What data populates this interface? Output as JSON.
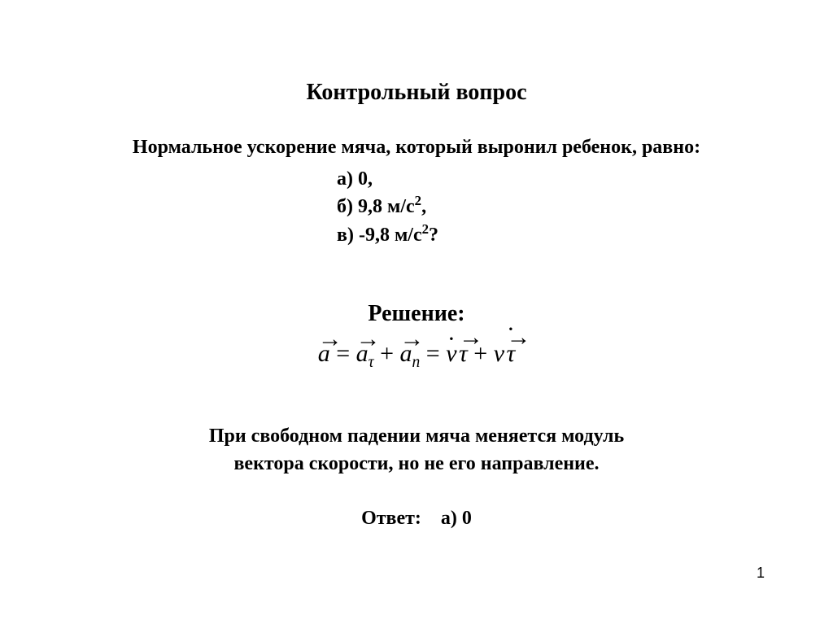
{
  "title": {
    "text": "Контрольный вопрос",
    "fontsize": 28
  },
  "question": {
    "prompt": "Нормальное ускорение мяча, который выронил ребенок, равно:",
    "fontsize": 24,
    "options": {
      "a": {
        "label": "а) 0,"
      },
      "b": {
        "prefix": "б) 9,8 м/с",
        "exp": "2",
        "suffix": ","
      },
      "c": {
        "prefix": "в) -9,8 м/с",
        "exp": "2",
        "suffix": "?"
      }
    }
  },
  "solution": {
    "label": "Решение:",
    "label_fontsize": 28,
    "equation_fontsize": 30,
    "eq": {
      "a": "a",
      "eq1": " = ",
      "atau": "a",
      "tau_sub": "τ",
      "plus": " + ",
      "an": "a",
      "n_sub": "n",
      "eq2": " = ",
      "vdot": "v",
      "tau1": "τ",
      "plus2": " + ",
      "v2": "v",
      "tau2": "τ",
      "arrow": "→",
      "dot": "·"
    },
    "explanation_line1": "При свободном падении мяча меняется модуль",
    "explanation_line2": "вектора скорости, но не его направление.",
    "explanation_fontsize": 24
  },
  "answer": {
    "label": "Ответ:",
    "value": "а) 0",
    "fontsize": 24
  },
  "page_number": "1",
  "colors": {
    "text": "#000000",
    "background": "#ffffff"
  }
}
